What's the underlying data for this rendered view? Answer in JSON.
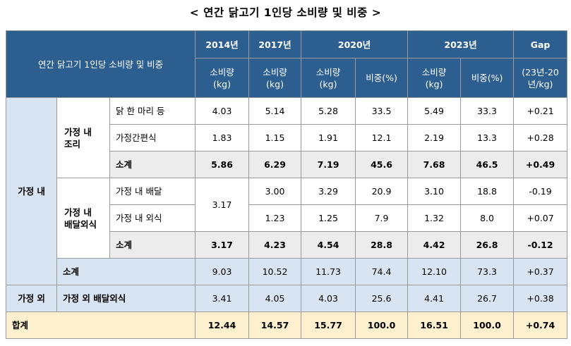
{
  "title": "< 연간 닭고기 1인당 소비량 및 비중 >",
  "header": {
    "corner": "연간 닭고기 1인당 소비량 및 비중",
    "years": [
      "2014년",
      "2017년",
      "2020년",
      "2023년",
      "Gap"
    ],
    "sub": [
      "소비량\n(kg)",
      "소비량\n(kg)",
      "소비량\n(kg)",
      "비중(%)",
      "소비량\n(kg)",
      "비중(%)",
      "(23년-20\n년/kg)"
    ]
  },
  "groups": {
    "home": "가정 내",
    "home_cook": "가정 내\n조리",
    "home_delivery": "가정 내\n배달외식",
    "outside": "가정 외",
    "total": "합계"
  },
  "rows": {
    "whole_chicken": {
      "label": "닭 한 마리 등",
      "v": [
        "4.03",
        "5.14",
        "5.28",
        "33.5",
        "5.49",
        "33.3",
        "+0.21"
      ]
    },
    "convenience": {
      "label": "가정간편식",
      "v": [
        "1.83",
        "1.15",
        "1.91",
        "12.1",
        "2.19",
        "13.3",
        "+0.28"
      ]
    },
    "cook_subtotal": {
      "label": "소계",
      "v": [
        "5.86",
        "6.29",
        "7.19",
        "45.6",
        "7.68",
        "46.5",
        "+0.49"
      ]
    },
    "delivery": {
      "label": "가정 내 배달",
      "v": [
        "3.00",
        "3.29",
        "20.9",
        "3.10",
        "18.8",
        "-0.19"
      ]
    },
    "merged_2014": "3.17",
    "eat_out": {
      "label": "가정 내 외식",
      "v": [
        "1.23",
        "1.25",
        "7.9",
        "1.32",
        "8.0",
        "+0.07"
      ]
    },
    "delivery_subtotal": {
      "label": "소계",
      "v": [
        "3.17",
        "4.23",
        "4.54",
        "28.8",
        "4.42",
        "26.8",
        "-0.12"
      ]
    },
    "home_subtotal": {
      "label": "소계",
      "v": [
        "9.03",
        "10.52",
        "11.73",
        "74.4",
        "12.10",
        "73.3",
        "+0.37"
      ]
    },
    "outside_delivery": {
      "label": "가정 외 배달외식",
      "v": [
        "3.41",
        "4.05",
        "4.03",
        "25.6",
        "4.41",
        "26.7",
        "+0.38"
      ]
    },
    "total": {
      "v": [
        "12.44",
        "14.57",
        "15.77",
        "100.0",
        "16.51",
        "100.0",
        "+0.74"
      ]
    }
  }
}
